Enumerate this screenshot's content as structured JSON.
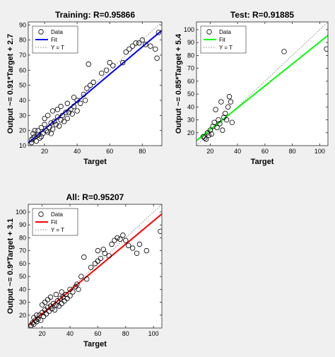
{
  "colors": {
    "background": "#f0f0f0",
    "training_fit": "#0000ff",
    "test_fit": "#00ff00",
    "all_fit": "#ff0000",
    "points": "#000000",
    "identity": "#888888"
  },
  "chart_data": [
    {
      "type": "scatter",
      "title": "Training: R=0.95866",
      "xlabel": "Target",
      "ylabel": "Output ~= 0.91*Target + 2.7",
      "xlim": [
        10,
        92
      ],
      "ylim": [
        10,
        92
      ],
      "xticks": [
        20,
        40,
        60,
        80
      ],
      "yticks": [
        10,
        20,
        30,
        40,
        50,
        60,
        70,
        80,
        90
      ],
      "legend": {
        "placement": "top-left",
        "entries": [
          "Data",
          "Fit",
          "Y = T"
        ]
      },
      "fit": {
        "slope": 0.91,
        "intercept": 2.7,
        "color": "#0000ff"
      },
      "grid": false,
      "points": [
        [
          12,
          12
        ],
        [
          12,
          14
        ],
        [
          13,
          15
        ],
        [
          14,
          16
        ],
        [
          13,
          18
        ],
        [
          15,
          13
        ],
        [
          16,
          20
        ],
        [
          17,
          15
        ],
        [
          18,
          22
        ],
        [
          14,
          20
        ],
        [
          16,
          17
        ],
        [
          19,
          18
        ],
        [
          20,
          24
        ],
        [
          18,
          16
        ],
        [
          21,
          20
        ],
        [
          22,
          19
        ],
        [
          20,
          28
        ],
        [
          23,
          22
        ],
        [
          24,
          25
        ],
        [
          22,
          30
        ],
        [
          25,
          21
        ],
        [
          26,
          26
        ],
        [
          24,
          18
        ],
        [
          27,
          24
        ],
        [
          28,
          29
        ],
        [
          25,
          33
        ],
        [
          29,
          23
        ],
        [
          30,
          27
        ],
        [
          28,
          34
        ],
        [
          31,
          30
        ],
        [
          32,
          26
        ],
        [
          30,
          36
        ],
        [
          33,
          32
        ],
        [
          34,
          28
        ],
        [
          35,
          32
        ],
        [
          36,
          34
        ],
        [
          34,
          38
        ],
        [
          37,
          31
        ],
        [
          38,
          36
        ],
        [
          40,
          33
        ],
        [
          40,
          40
        ],
        [
          42,
          38
        ],
        [
          38,
          42
        ],
        [
          44,
          44
        ],
        [
          45,
          40
        ],
        [
          46,
          48
        ],
        [
          47,
          64
        ],
        [
          48,
          50
        ],
        [
          50,
          52
        ],
        [
          55,
          58
        ],
        [
          58,
          60
        ],
        [
          60,
          65
        ],
        [
          62,
          63
        ],
        [
          68,
          65
        ],
        [
          70,
          72
        ],
        [
          72,
          74
        ],
        [
          74,
          76
        ],
        [
          76,
          78
        ],
        [
          78,
          78
        ],
        [
          80,
          80
        ],
        [
          82,
          77
        ],
        [
          85,
          76
        ],
        [
          88,
          74
        ],
        [
          90,
          85
        ],
        [
          89,
          68
        ]
      ]
    },
    {
      "type": "scatter",
      "title": "Test: R=0.91885",
      "xlabel": "Target",
      "ylabel": "Output ~= 0.85*Target + 5.4",
      "xlim": [
        10,
        106
      ],
      "ylim": [
        10,
        106
      ],
      "xticks": [
        20,
        40,
        60,
        80,
        100
      ],
      "yticks": [
        20,
        30,
        40,
        50,
        60,
        70,
        80,
        90,
        100
      ],
      "legend": {
        "placement": "top-left",
        "entries": [
          "Data",
          "Fit",
          "Y = T"
        ]
      },
      "fit": {
        "slope": 0.85,
        "intercept": 5.4,
        "color": "#00ff00"
      },
      "grid": false,
      "points": [
        [
          15,
          17
        ],
        [
          16,
          16
        ],
        [
          17,
          15
        ],
        [
          18,
          20
        ],
        [
          19,
          18
        ],
        [
          20,
          22
        ],
        [
          21,
          19
        ],
        [
          22,
          25
        ],
        [
          23,
          28
        ],
        [
          24,
          38
        ],
        [
          25,
          24
        ],
        [
          26,
          30
        ],
        [
          27,
          27
        ],
        [
          28,
          44
        ],
        [
          29,
          22
        ],
        [
          30,
          32
        ],
        [
          31,
          35
        ],
        [
          32,
          30
        ],
        [
          33,
          40
        ],
        [
          34,
          48
        ],
        [
          35,
          44
        ],
        [
          36,
          28
        ],
        [
          74,
          83
        ],
        [
          105,
          85
        ]
      ]
    },
    {
      "type": "scatter",
      "title": "All: R=0.95207",
      "xlabel": "Target",
      "ylabel": "Output ~= 0.9*Target + 3.1",
      "xlim": [
        10,
        106
      ],
      "ylim": [
        10,
        106
      ],
      "xticks": [
        20,
        40,
        60,
        80,
        100
      ],
      "yticks": [
        20,
        30,
        40,
        50,
        60,
        70,
        80,
        90,
        100
      ],
      "legend": {
        "placement": "top-left",
        "entries": [
          "Data",
          "Fit",
          "Y = T"
        ]
      },
      "fit": {
        "slope": 0.9,
        "intercept": 3.1,
        "color": "#ff0000"
      },
      "grid": false,
      "points": [
        [
          12,
          12
        ],
        [
          13,
          14
        ],
        [
          14,
          13
        ],
        [
          15,
          16
        ],
        [
          16,
          15
        ],
        [
          14,
          18
        ],
        [
          17,
          17
        ],
        [
          18,
          20
        ],
        [
          19,
          16
        ],
        [
          20,
          22
        ],
        [
          16,
          20
        ],
        [
          21,
          19
        ],
        [
          22,
          24
        ],
        [
          23,
          21
        ],
        [
          24,
          26
        ],
        [
          20,
          28
        ],
        [
          25,
          23
        ],
        [
          26,
          27
        ],
        [
          22,
          30
        ],
        [
          27,
          25
        ],
        [
          28,
          29
        ],
        [
          24,
          32
        ],
        [
          29,
          24
        ],
        [
          30,
          28
        ],
        [
          26,
          34
        ],
        [
          31,
          31
        ],
        [
          32,
          27
        ],
        [
          30,
          36
        ],
        [
          33,
          33
        ],
        [
          34,
          29
        ],
        [
          35,
          34
        ],
        [
          36,
          31
        ],
        [
          34,
          38
        ],
        [
          37,
          36
        ],
        [
          38,
          33
        ],
        [
          40,
          35
        ],
        [
          40,
          40
        ],
        [
          42,
          38
        ],
        [
          44,
          42
        ],
        [
          45,
          44
        ],
        [
          46,
          40
        ],
        [
          48,
          50
        ],
        [
          50,
          65
        ],
        [
          52,
          48
        ],
        [
          55,
          57
        ],
        [
          58,
          60
        ],
        [
          60,
          62
        ],
        [
          62,
          64
        ],
        [
          65,
          68
        ],
        [
          68,
          66
        ],
        [
          70,
          75
        ],
        [
          72,
          78
        ],
        [
          74,
          80
        ],
        [
          76,
          79
        ],
        [
          78,
          82
        ],
        [
          80,
          78
        ],
        [
          82,
          74
        ],
        [
          85,
          72
        ],
        [
          88,
          68
        ],
        [
          90,
          75
        ],
        [
          95,
          70
        ],
        [
          105,
          85
        ],
        [
          60,
          70
        ],
        [
          64,
          71
        ]
      ]
    }
  ]
}
